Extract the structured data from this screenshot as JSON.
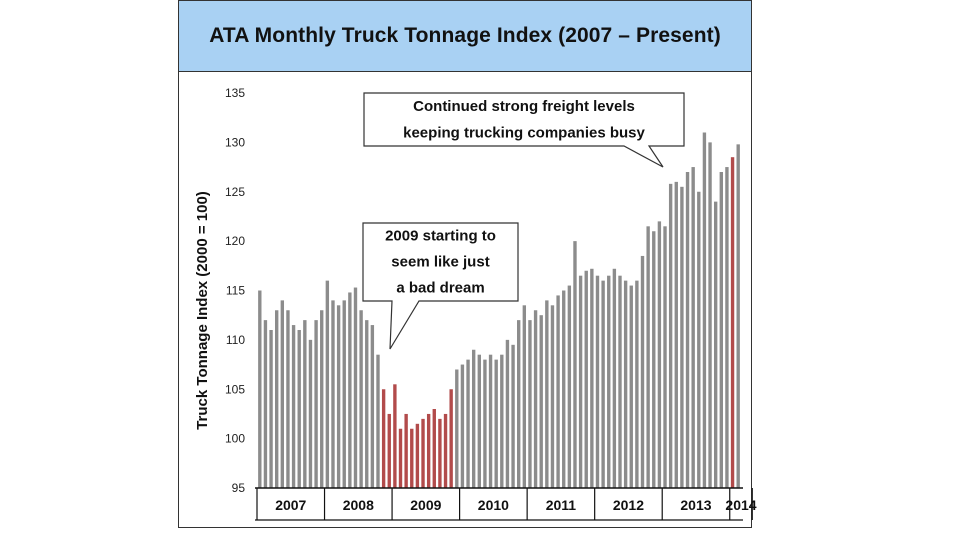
{
  "chart_data": {
    "type": "bar",
    "title": "ATA Monthly Truck Tonnage Index (2007 – Present)",
    "ylabel": "Truck Tonnage Index (2000 = 100)",
    "xlabel": "",
    "ylim": [
      95,
      135
    ],
    "yticks": [
      "135",
      "130",
      "125",
      "120",
      "115",
      "110",
      "105",
      "100",
      "95"
    ],
    "years": [
      "2007",
      "2008",
      "2009",
      "2010",
      "2011",
      "2012",
      "2013",
      "2014"
    ],
    "colors": {
      "normal": "#8c8c8c",
      "highlight": "#b24b4b",
      "title_band": "#a9d1f3"
    },
    "values": [
      115,
      112,
      111,
      113,
      114,
      113,
      111.5,
      111,
      112,
      110,
      112,
      113,
      116,
      114,
      113.5,
      114,
      114.8,
      115.3,
      113,
      112,
      111.5,
      108.5,
      105,
      102.5,
      105.5,
      101,
      102.5,
      101,
      101.5,
      102,
      102.5,
      103,
      102,
      102.5,
      105,
      107,
      107.5,
      108,
      109,
      108.5,
      108,
      108.5,
      108,
      108.5,
      110,
      109.5,
      112,
      113.5,
      112,
      113,
      112.5,
      114,
      113.5,
      114.5,
      115,
      115.5,
      120,
      116.5,
      117,
      117.2,
      116.5,
      116,
      116.5,
      117.2,
      116.5,
      116,
      115.5,
      116,
      118.5,
      121.5,
      121,
      122,
      121.5,
      125.8,
      126,
      125.5,
      127,
      127.5,
      125,
      131,
      130,
      124,
      127,
      127.5,
      128.5,
      129.8
    ],
    "highlight_indices": [
      22,
      23,
      24,
      25,
      26,
      27,
      28,
      29,
      30,
      31,
      32,
      33,
      34,
      84
    ],
    "annotations": [
      {
        "lines": [
          "Continued strong freight levels",
          "keeping trucking companies busy"
        ]
      },
      {
        "lines": [
          "2009 starting to",
          "seem like just",
          "a bad dream"
        ]
      }
    ]
  }
}
